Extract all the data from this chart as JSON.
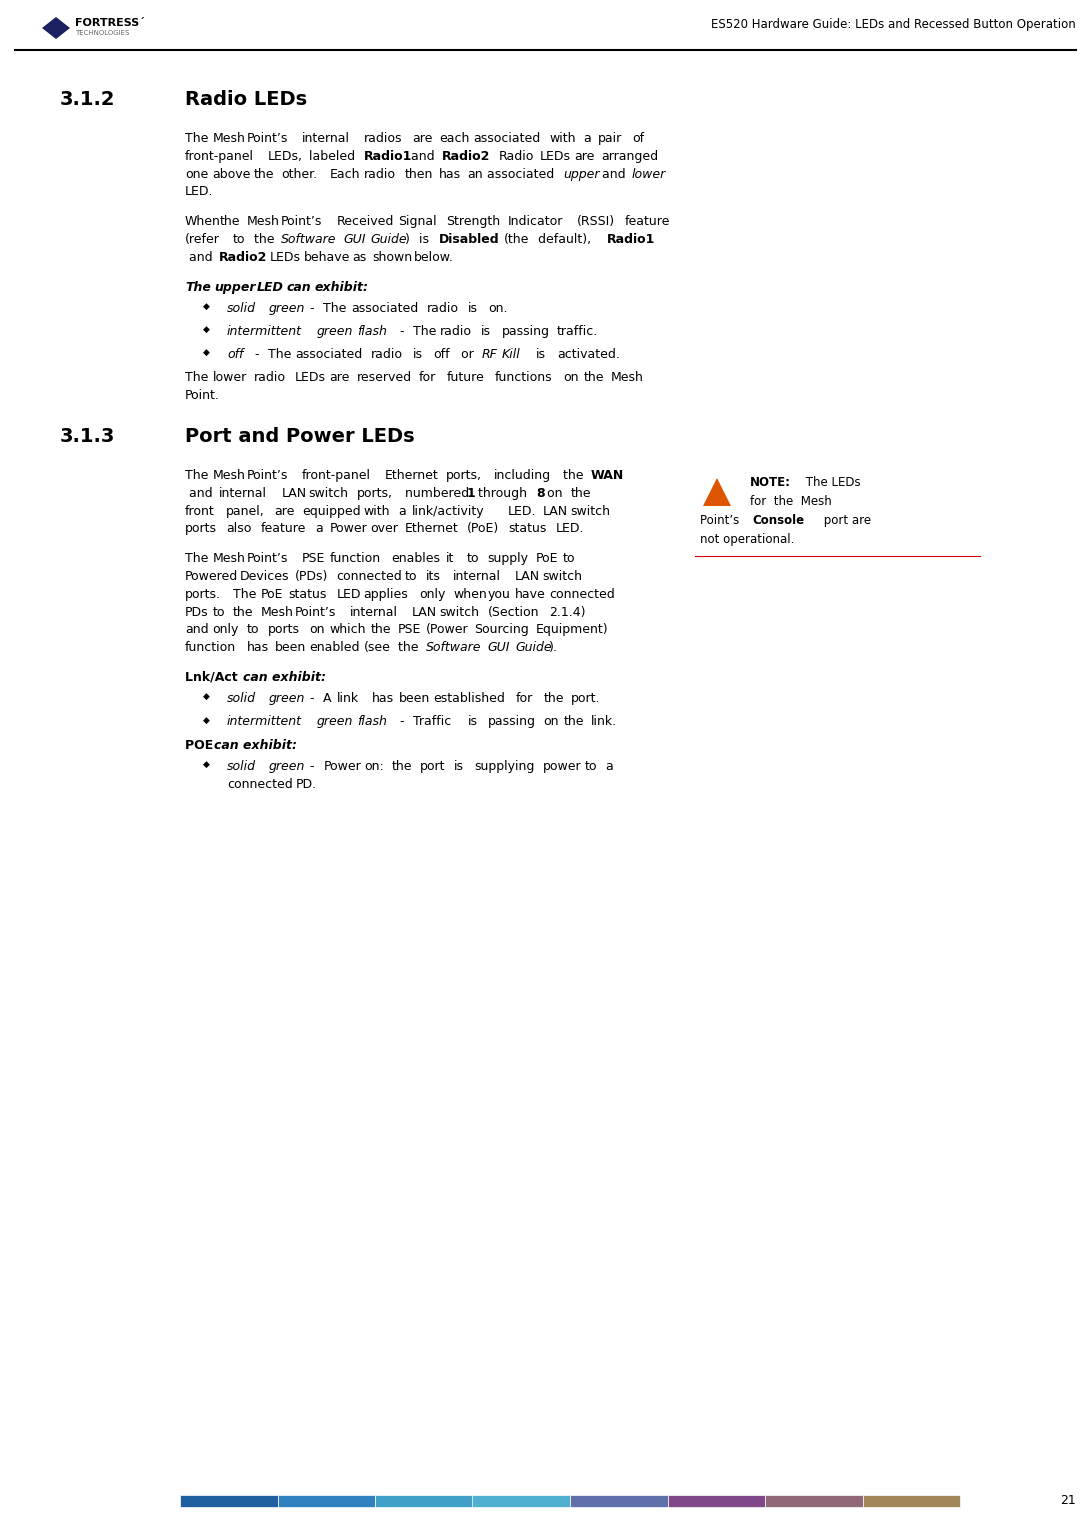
{
  "bg_color": "#ffffff",
  "header_title": "ES520 Hardware Guide: LEDs and Recessed Button Operation",
  "page_number": "21",
  "section_312_num": "3.1.2",
  "section_312_title": "Radio LEDs",
  "section_313_num": "3.1.3",
  "section_313_title": "Port and Power LEDs",
  "footer_bar_colors": [
    "#2060a0",
    "#3080c0",
    "#40a0c8",
    "#50b0d0",
    "#6070a8",
    "#804888",
    "#906878",
    "#a08858"
  ],
  "bullet_char": "◆",
  "text_color": "#000000",
  "note_line_color": "#cc0000"
}
